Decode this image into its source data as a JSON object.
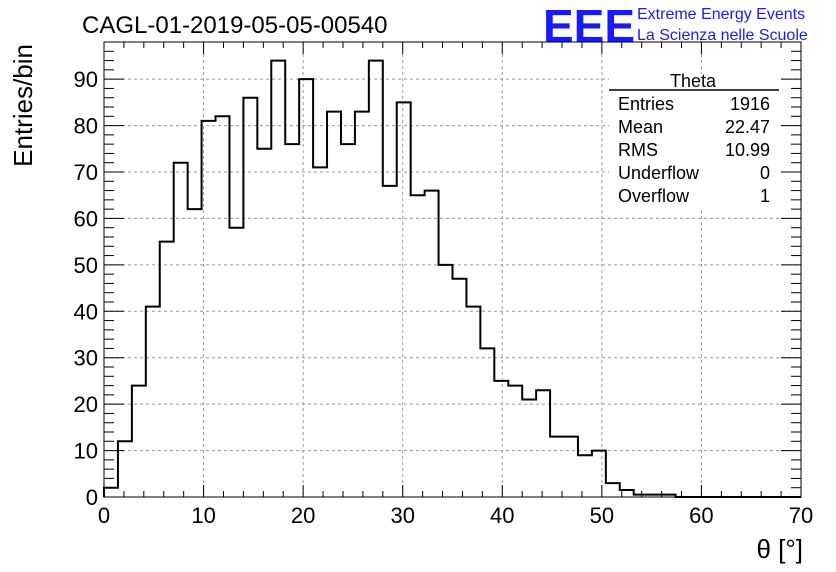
{
  "chart_data": {
    "type": "bar",
    "title": "CAGL-01-2019-05-05-00540",
    "xlabel": "θ [°]",
    "ylabel": "Entries/bin",
    "xlim": [
      0,
      70
    ],
    "ylim": [
      0,
      98
    ],
    "grid": true,
    "x_ticks": [
      "0",
      "10",
      "20",
      "30",
      "40",
      "50",
      "60",
      "70"
    ],
    "y_ticks": [
      "0",
      "10",
      "20",
      "30",
      "40",
      "50",
      "60",
      "70",
      "80",
      "90"
    ],
    "bin_width": 1.4,
    "bin_edges_start": 0,
    "values": [
      2,
      12,
      24,
      41,
      55,
      72,
      62,
      81,
      82,
      58,
      86,
      75,
      94,
      76,
      90,
      71,
      83,
      76,
      83,
      94,
      67,
      85,
      65,
      66,
      50,
      47,
      41,
      32,
      25,
      24,
      21,
      23,
      13,
      13,
      9,
      10,
      3,
      1.5,
      0.5,
      0.5,
      0.5,
      0,
      0,
      0,
      0,
      0,
      0,
      0,
      0,
      0
    ],
    "stats": {
      "name": "Theta",
      "rows": [
        {
          "label": "Entries",
          "value": "1916"
        },
        {
          "label": "Mean",
          "value": "22.47"
        },
        {
          "label": "RMS",
          "value": "10.99"
        },
        {
          "label": "Underflow",
          "value": "0"
        },
        {
          "label": "Overflow",
          "value": "1"
        }
      ]
    }
  },
  "logo": {
    "mark": "EEE",
    "line1": "Extreme Energy Events",
    "line2": "La Scienza nelle Scuole",
    "color": "#1a1aff"
  }
}
